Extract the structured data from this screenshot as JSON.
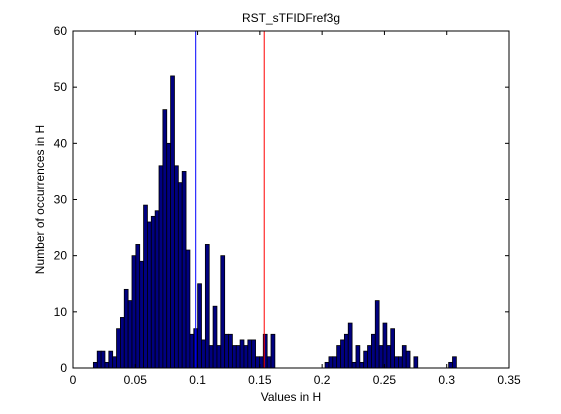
{
  "chart_data": {
    "type": "bar",
    "title": "RST_sTFIDFref3g",
    "xlabel": "Values in H",
    "ylabel": "Number of occurrences in H",
    "xlim": [
      0,
      0.35
    ],
    "ylim": [
      0,
      60
    ],
    "xticks": [
      "0",
      "0.05",
      "0.1",
      "0.15",
      "0.2",
      "0.25",
      "0.3",
      "0.35"
    ],
    "yticks": [
      "0",
      "10",
      "20",
      "30",
      "40",
      "50",
      "60"
    ],
    "bin_width": 0.0031,
    "x": [
      0.0179,
      0.021,
      0.0241,
      0.0272,
      0.0303,
      0.0334,
      0.0365,
      0.0396,
      0.0427,
      0.0458,
      0.0489,
      0.052,
      0.0551,
      0.0582,
      0.0613,
      0.0644,
      0.0675,
      0.0706,
      0.0737,
      0.0768,
      0.0799,
      0.083,
      0.0861,
      0.0892,
      0.0923,
      0.0954,
      0.0985,
      0.1016,
      0.1047,
      0.1078,
      0.1109,
      0.114,
      0.1171,
      0.1202,
      0.1233,
      0.1264,
      0.1295,
      0.1326,
      0.1357,
      0.1388,
      0.1419,
      0.145,
      0.1481,
      0.1512,
      0.1543,
      0.1574,
      0.1605,
      0.2039,
      0.207,
      0.2101,
      0.2132,
      0.2163,
      0.2194,
      0.2225,
      0.2256,
      0.2287,
      0.2318,
      0.2349,
      0.238,
      0.2411,
      0.2442,
      0.2473,
      0.2504,
      0.2535,
      0.2566,
      0.2597,
      0.2628,
      0.2659,
      0.269,
      0.2752,
      0.3031,
      0.3062
    ],
    "values": [
      1,
      3,
      3,
      1,
      3,
      2,
      7,
      9,
      14,
      12,
      20,
      22,
      19,
      29,
      26,
      27,
      28,
      36,
      46,
      40,
      52,
      36,
      33,
      35,
      21,
      6,
      7,
      15,
      5,
      22,
      4,
      11,
      4,
      20,
      6,
      6,
      4,
      4,
      5,
      4,
      5,
      5,
      2,
      2,
      6,
      2,
      6,
      1,
      2,
      2,
      4,
      5,
      6,
      8,
      1,
      4,
      1,
      3,
      4,
      6,
      12,
      4,
      8,
      4,
      7,
      2,
      2,
      4,
      3,
      2,
      1,
      2
    ],
    "reference_lines": [
      {
        "x": 0.0985,
        "color": "#0000ff"
      },
      {
        "x": 0.1535,
        "color": "#ff0000"
      }
    ],
    "bar_color": "#000080",
    "bar_edge": "#000000"
  }
}
